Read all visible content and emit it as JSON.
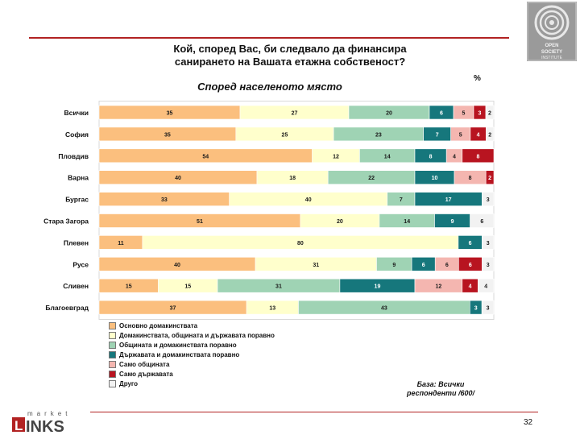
{
  "title_line1": "Кой, според Вас, би следвало да финансира",
  "title_line2": "санирането на Вашата етажна собственост?",
  "subtitle": "Според населеното място",
  "unit_label": "%",
  "base_line1": "База: Всички",
  "base_line2": "респонденти   /600/",
  "page_number": "32",
  "brand": {
    "left_logo_text": "market LINKS",
    "right_logo_text": "OPEN SOCIETY INSTITUTE"
  },
  "colors": {
    "accent": "#b22222"
  },
  "chart_data": {
    "type": "bar",
    "orientation": "horizontal",
    "stacked": true,
    "title": "Кой, според Вас, би следвало да финансира санирането на Вашата етажна собственост?",
    "subtitle": "Според населеното място",
    "unit": "%",
    "categories": [
      "Всички",
      "София",
      "Пловдив",
      "Варна",
      "Бургас",
      "Стара Загора",
      "Плевен",
      "Русе",
      "Сливен",
      "Благоевград"
    ],
    "series": [
      {
        "name": "Основно домакинствата",
        "color": "#fbbf7e",
        "values": [
          35,
          35,
          54,
          40,
          33,
          51,
          11,
          40,
          15,
          37
        ]
      },
      {
        "name": "Домакинствата, общината и държавата поравно",
        "color": "#ffffcc",
        "values": [
          27,
          25,
          12,
          18,
          40,
          20,
          80,
          31,
          15,
          13
        ]
      },
      {
        "name": "Общината и домакинствата поравно",
        "color": "#9fd3b4",
        "values": [
          20,
          23,
          14,
          22,
          7,
          14,
          0,
          9,
          31,
          43
        ]
      },
      {
        "name": "Държавата и домакинствата поравно",
        "color": "#16777c",
        "values": [
          6,
          7,
          8,
          10,
          17,
          9,
          6,
          6,
          19,
          3
        ]
      },
      {
        "name": "Само общината",
        "color": "#f4b6b0",
        "values": [
          5,
          5,
          4,
          8,
          0,
          0,
          0,
          6,
          12,
          0
        ]
      },
      {
        "name": "Само държавата",
        "color": "#b81420",
        "values": [
          3,
          4,
          8,
          2,
          0,
          0,
          0,
          6,
          4,
          0
        ]
      },
      {
        "name": "Друго",
        "color": "#f2f2f2",
        "values": [
          2,
          2,
          0,
          0,
          3,
          6,
          3,
          3,
          4,
          3
        ]
      }
    ],
    "xlim": [
      0,
      100
    ]
  }
}
